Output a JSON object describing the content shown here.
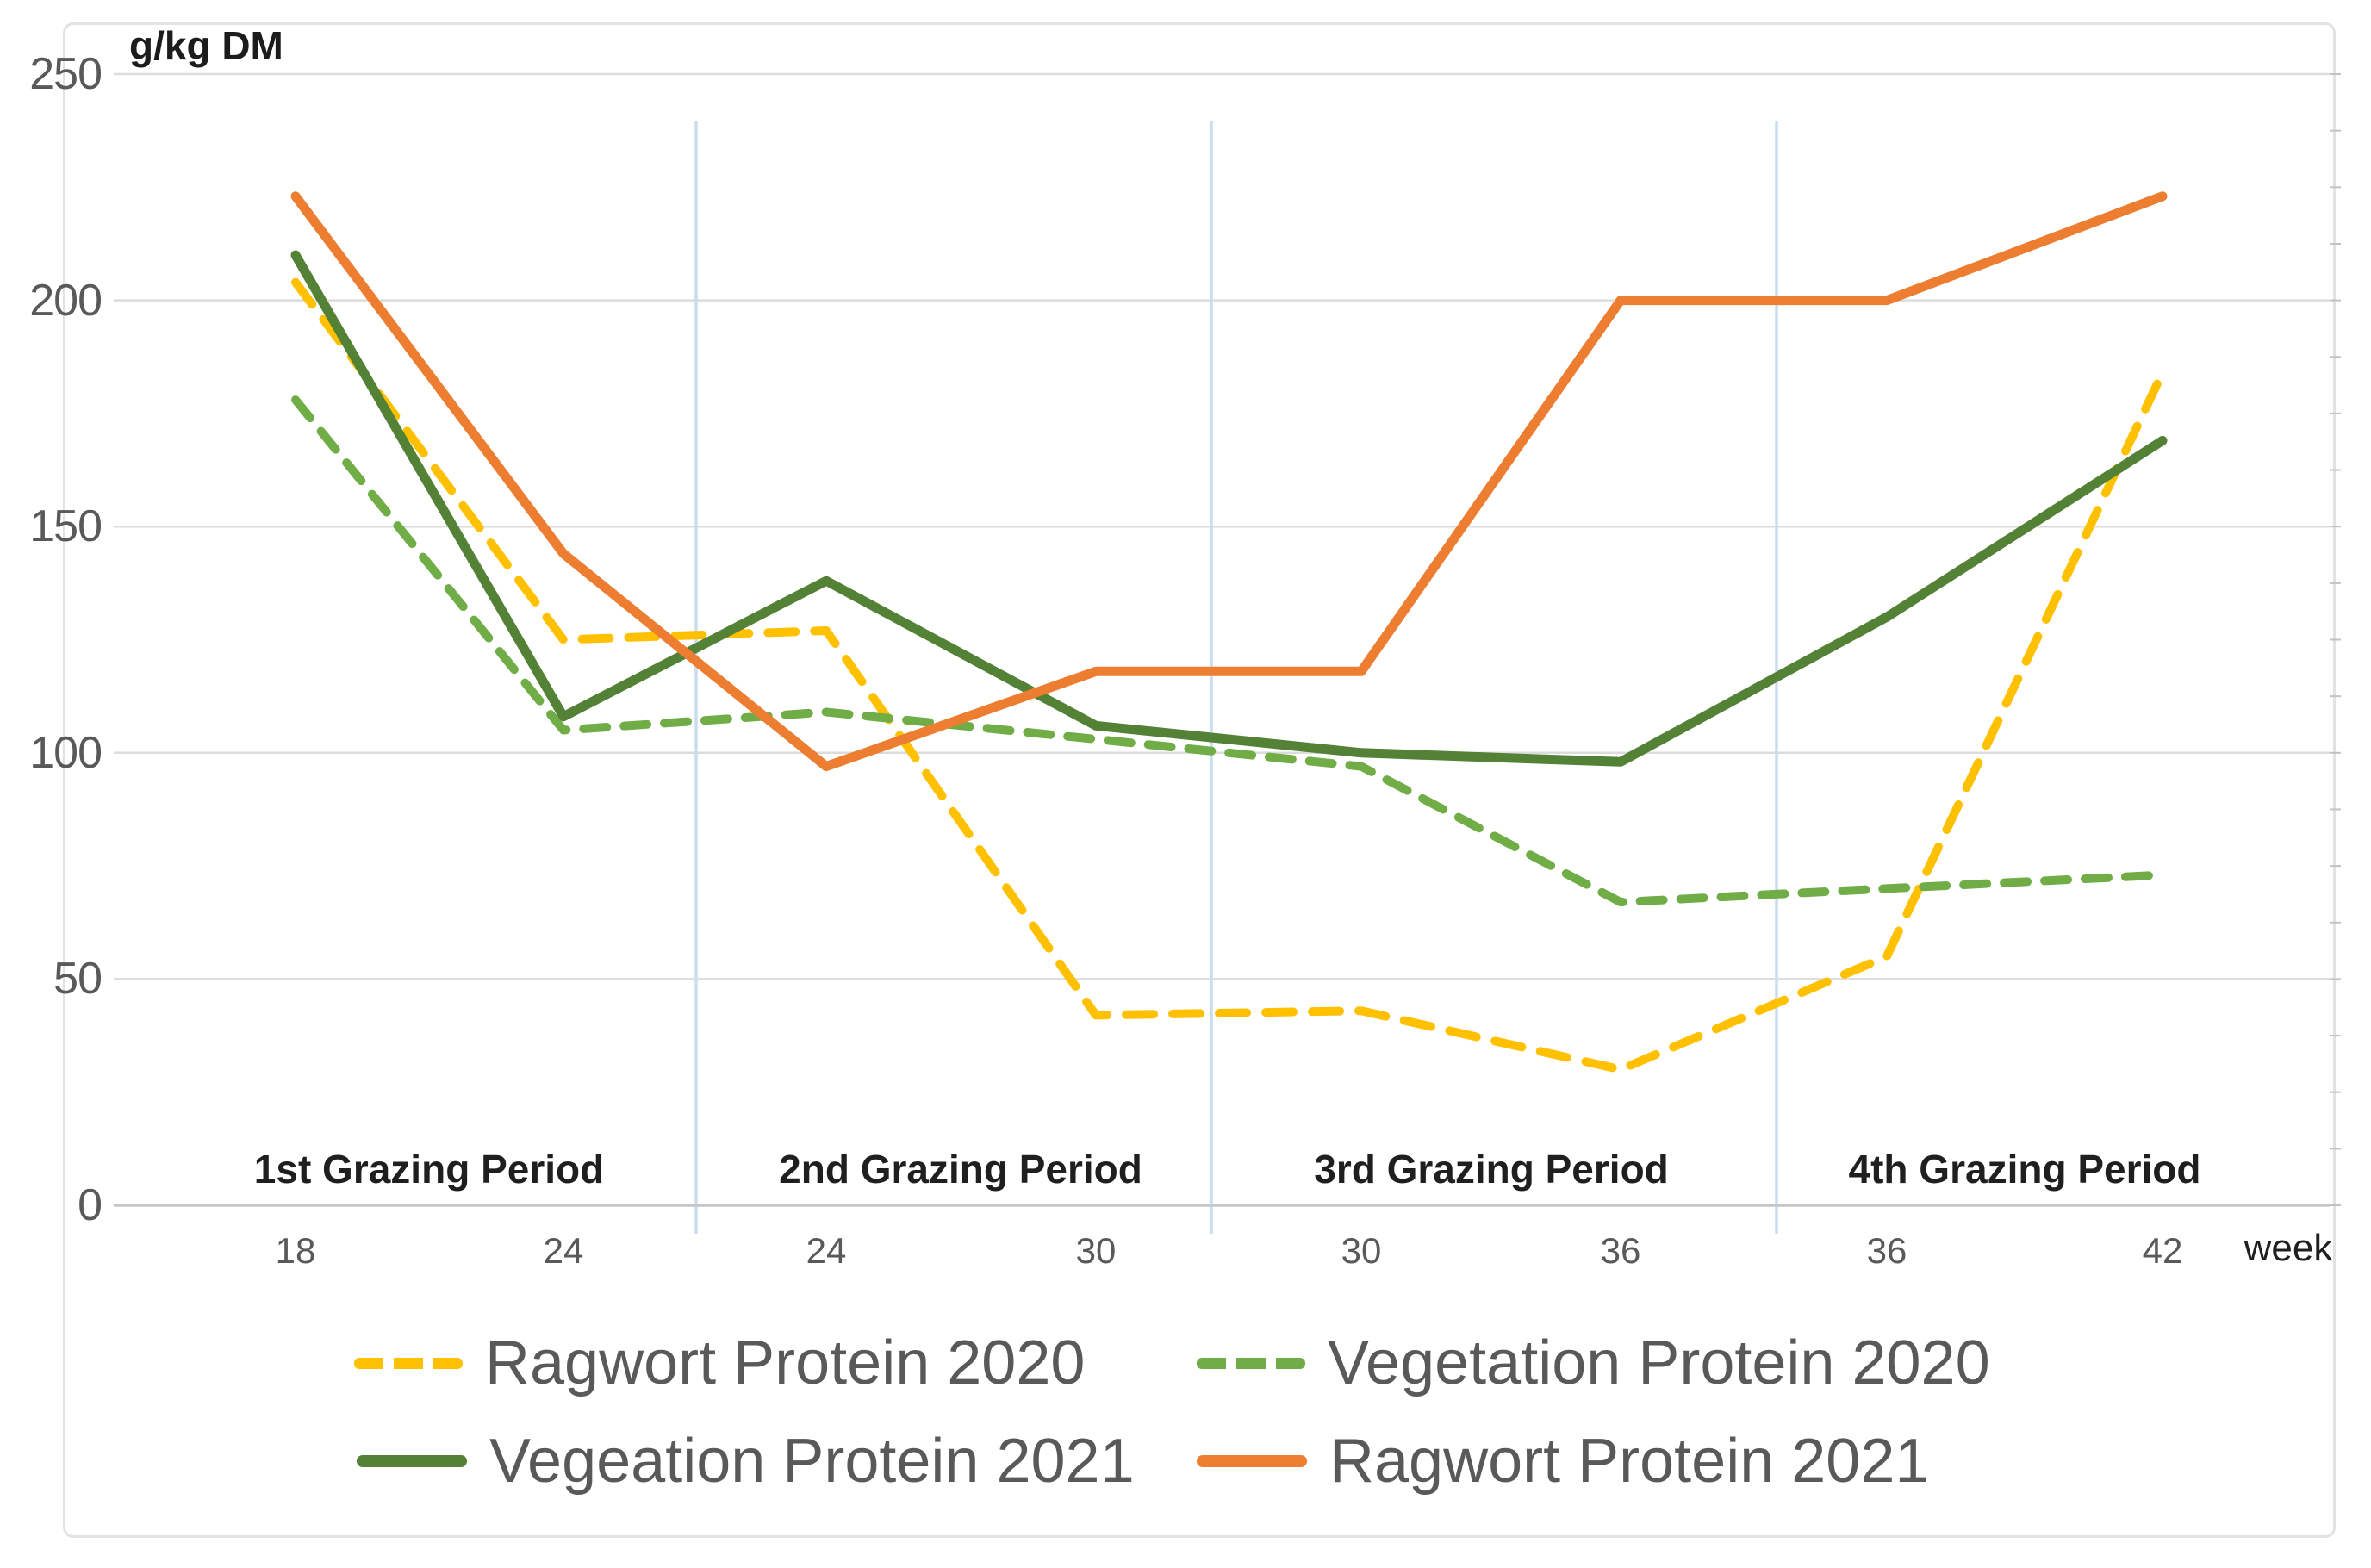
{
  "chart_data": {
    "type": "line",
    "title": "",
    "ylabel": "g/kg DM",
    "xlabel": "week",
    "ylim": [
      0,
      250
    ],
    "yticks": [
      0,
      50,
      100,
      150,
      200,
      250
    ],
    "grid": "horizontal",
    "legend_position": "bottom",
    "x_week_labels": [
      "18",
      "24",
      "24",
      "30",
      "30",
      "36",
      "36",
      "42"
    ],
    "period_labels": [
      "1st Grazing Period",
      "2nd Grazing Period",
      "3rd Grazing Period",
      "4th Grazing Period"
    ],
    "series": [
      {
        "name": "Ragwort Protein 2020",
        "color": "#FFC000",
        "style": "dashed",
        "values": [
          204,
          125,
          127,
          42,
          43,
          30,
          55,
          184
        ]
      },
      {
        "name": "Vegetation Protein 2020",
        "color": "#70AD47",
        "style": "dashed",
        "values": [
          178,
          105,
          109,
          103,
          97,
          67,
          70,
          73
        ]
      },
      {
        "name": "Vegeation Protein 2021",
        "color": "#538135",
        "style": "solid",
        "values": [
          210,
          108,
          138,
          106,
          100,
          98,
          130,
          169
        ]
      },
      {
        "name": "Ragwort Protein 2021",
        "color": "#ED7D31",
        "style": "solid",
        "values": [
          223,
          144,
          97,
          118,
          118,
          200,
          200,
          223
        ]
      }
    ],
    "legend_rows": [
      [
        0,
        1
      ],
      [
        2,
        3
      ]
    ],
    "colors": {
      "gridline": "#dcdcdc",
      "axis_line": "#c6c6c6",
      "minor_tick": "#c2c2c2",
      "period_separator": "#cadcf0"
    }
  }
}
